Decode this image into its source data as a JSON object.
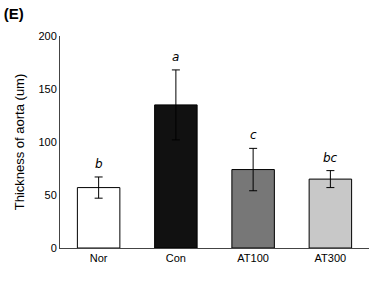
{
  "chart_data": {
    "type": "bar",
    "title": "(E)",
    "categories": [
      "Nor",
      "Con",
      "AT100",
      "AT300"
    ],
    "values": [
      57,
      135,
      74,
      65
    ],
    "errors": [
      10,
      33,
      20,
      8
    ],
    "colors": [
      "#ffffff",
      "#111111",
      "#777777",
      "#c8c8c8"
    ],
    "annotations": [
      "b",
      "a",
      "c",
      "bc"
    ],
    "ylabel": "Thickness of aorta (um)",
    "ylim": [
      0,
      200
    ],
    "yticks": [
      0,
      50,
      100,
      150,
      200
    ],
    "grid": false
  }
}
